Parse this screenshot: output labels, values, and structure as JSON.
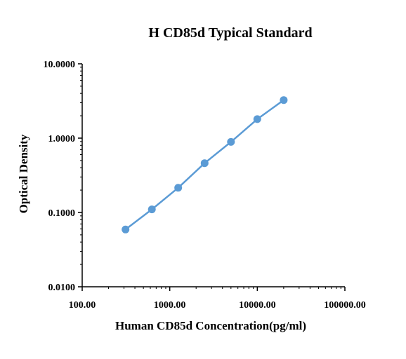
{
  "chart_data": {
    "type": "line",
    "title": "H CD85d Typical Standard",
    "xlabel": "Human CD85d Concentration(pg/ml)",
    "ylabel": "Optical Density",
    "xscale": "log",
    "yscale": "log",
    "xlim": [
      100,
      100000
    ],
    "ylim": [
      0.01,
      10
    ],
    "x_ticks": [
      "100.00",
      "1000.00",
      "10000.00",
      "100000.00"
    ],
    "y_ticks": [
      "0.0100",
      "0.1000",
      "1.0000",
      "10.0000"
    ],
    "series": [
      {
        "x": [
          312.5,
          625,
          1250,
          2500,
          5000,
          10000,
          20000
        ],
        "y": [
          0.059,
          0.11,
          0.215,
          0.46,
          0.89,
          1.8,
          3.25
        ]
      }
    ],
    "colors": {
      "series": "#5b9bd5",
      "axis": "#000000"
    },
    "grid": false,
    "legend": "none"
  }
}
